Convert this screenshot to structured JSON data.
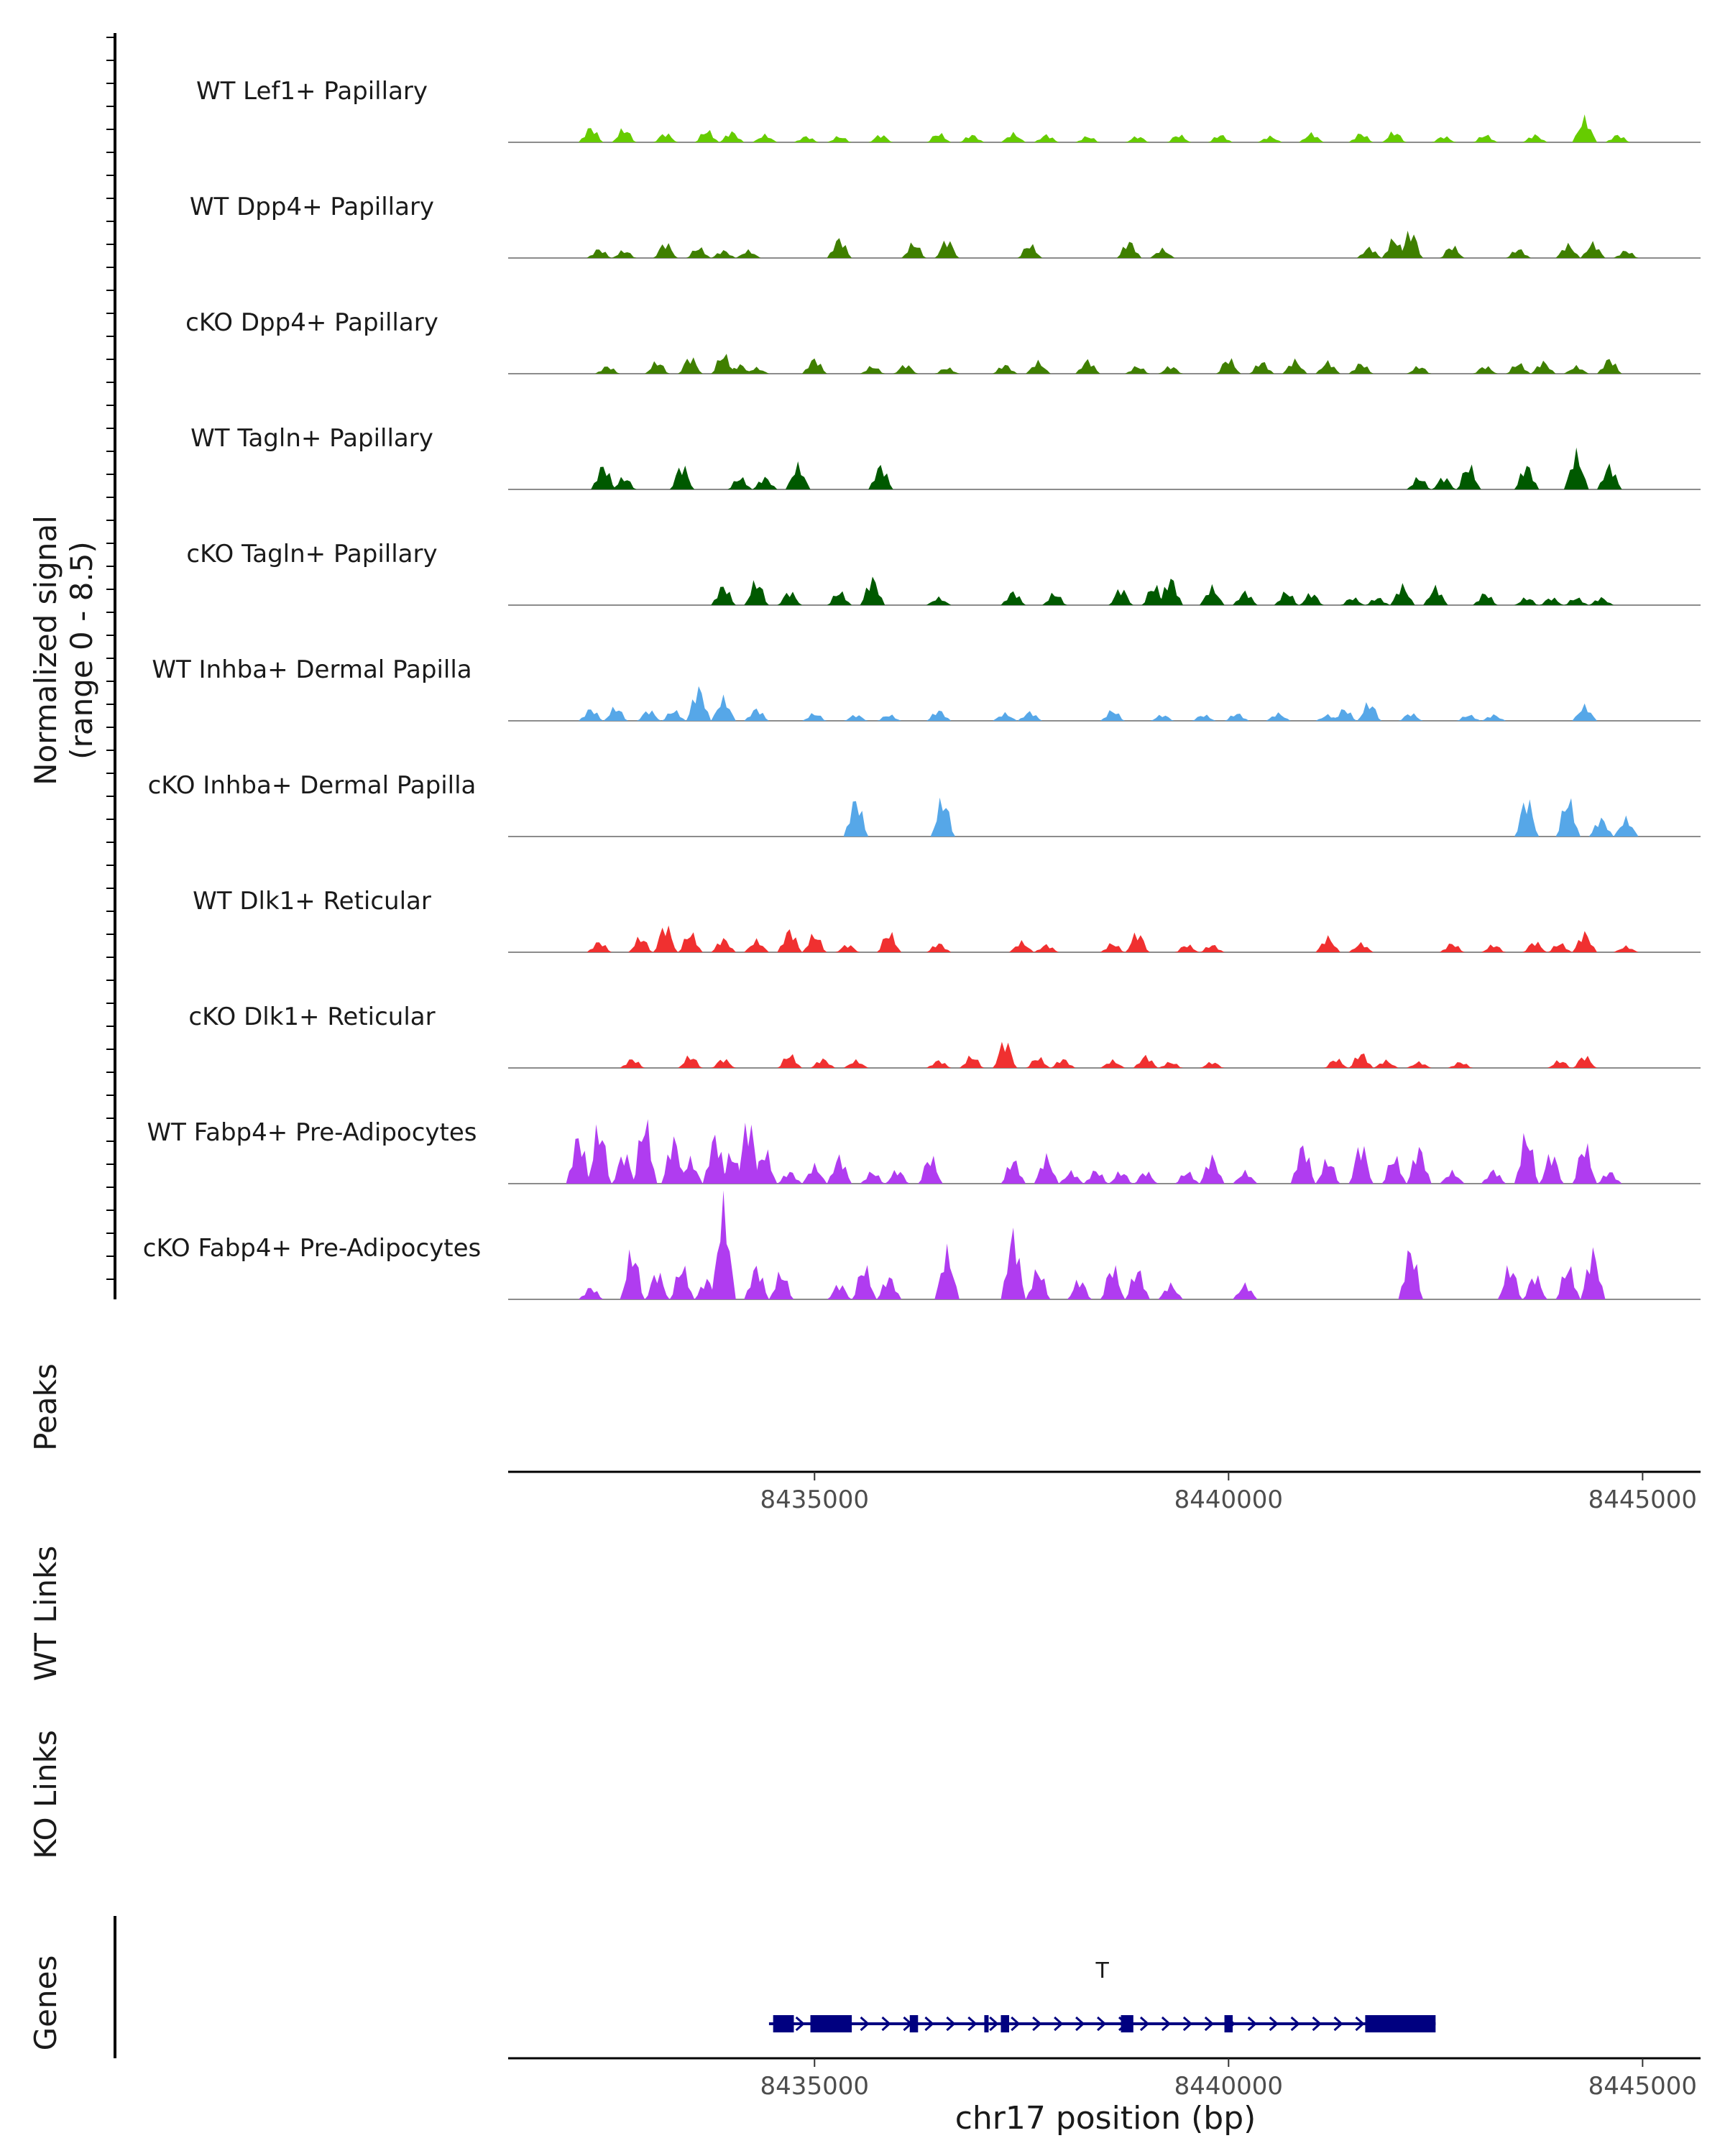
{
  "chart_data": {
    "type": "area",
    "title": "",
    "xlabel": "chr17 position (bp)",
    "ylabel": "Normalized signal",
    "ylabel_range": "(range 0 - 8.5)",
    "ylim": [
      0,
      8.5
    ],
    "xlim": [
      8431300,
      8445700
    ],
    "x_ticks": [
      8435000,
      8440000,
      8445000
    ],
    "x_tick_labels": [
      "8435000",
      "8440000",
      "8445000"
    ],
    "colors": {
      "lime": "#66cc00",
      "olive": "#3f7f00",
      "darkgreen": "#005900",
      "blue": "#56a7e8",
      "red": "#f03030",
      "purple": "#b03cf0",
      "gene": "#000080",
      "baseline": "#8c8c8c"
    },
    "tracks": [
      {
        "name": "WT Lef1+ Papillary",
        "color": "lime",
        "peaks": [
          [
            8432300,
            1.0
          ],
          [
            8432700,
            0.9
          ],
          [
            8433200,
            0.6
          ],
          [
            8433700,
            0.8
          ],
          [
            8434000,
            0.7
          ],
          [
            8434400,
            0.5
          ],
          [
            8434900,
            0.4
          ],
          [
            8435300,
            0.4
          ],
          [
            8435800,
            0.5
          ],
          [
            8436500,
            0.6
          ],
          [
            8436900,
            0.5
          ],
          [
            8437400,
            0.6
          ],
          [
            8437800,
            0.5
          ],
          [
            8438300,
            0.4
          ],
          [
            8438900,
            0.4
          ],
          [
            8439400,
            0.5
          ],
          [
            8439900,
            0.5
          ],
          [
            8440500,
            0.4
          ],
          [
            8441000,
            0.6
          ],
          [
            8441600,
            0.6
          ],
          [
            8442000,
            0.7
          ],
          [
            8442600,
            0.4
          ],
          [
            8443100,
            0.5
          ],
          [
            8443700,
            0.5
          ],
          [
            8444300,
            1.6
          ],
          [
            8444700,
            0.5
          ]
        ]
      },
      {
        "name": "WT Dpp4+ Papillary",
        "color": "olive",
        "peaks": [
          [
            8432400,
            0.6
          ],
          [
            8432700,
            0.5
          ],
          [
            8433200,
            1.0
          ],
          [
            8433600,
            0.7
          ],
          [
            8433900,
            0.5
          ],
          [
            8434200,
            0.5
          ],
          [
            8435300,
            1.3
          ],
          [
            8436200,
            1.0
          ],
          [
            8436600,
            1.2
          ],
          [
            8437600,
            0.9
          ],
          [
            8438800,
            1.1
          ],
          [
            8439200,
            0.6
          ],
          [
            8441700,
            0.7
          ],
          [
            8442000,
            1.3
          ],
          [
            8442200,
            1.8
          ],
          [
            8442700,
            0.8
          ],
          [
            8443500,
            0.6
          ],
          [
            8444100,
            0.9
          ],
          [
            8444400,
            1.0
          ],
          [
            8444800,
            0.5
          ]
        ]
      },
      {
        "name": "cKO Dpp4+ Papillary",
        "color": "olive",
        "peaks": [
          [
            8432500,
            0.5
          ],
          [
            8433100,
            0.8
          ],
          [
            8433500,
            1.1
          ],
          [
            8433900,
            1.3
          ],
          [
            8434100,
            0.6
          ],
          [
            8434300,
            0.4
          ],
          [
            8435000,
            1.0
          ],
          [
            8435700,
            0.5
          ],
          [
            8436100,
            0.6
          ],
          [
            8436600,
            0.4
          ],
          [
            8437300,
            0.6
          ],
          [
            8437700,
            0.8
          ],
          [
            8438300,
            0.9
          ],
          [
            8438900,
            0.5
          ],
          [
            8439300,
            0.5
          ],
          [
            8440000,
            1.0
          ],
          [
            8440400,
            0.8
          ],
          [
            8440800,
            0.9
          ],
          [
            8441200,
            0.8
          ],
          [
            8441600,
            0.7
          ],
          [
            8442300,
            0.5
          ],
          [
            8443100,
            0.5
          ],
          [
            8443500,
            0.7
          ],
          [
            8443800,
            0.8
          ],
          [
            8444200,
            0.5
          ],
          [
            8444600,
            1.0
          ]
        ]
      },
      {
        "name": "WT Tagln+ Papillary",
        "color": "darkgreen",
        "peaks": [
          [
            8432450,
            1.6
          ],
          [
            8432700,
            0.8
          ],
          [
            8433400,
            1.6
          ],
          [
            8434100,
            0.8
          ],
          [
            8434400,
            0.8
          ],
          [
            8434800,
            1.6
          ],
          [
            8435800,
            1.6
          ],
          [
            8442300,
            0.8
          ],
          [
            8442600,
            0.8
          ],
          [
            8442900,
            1.6
          ],
          [
            8443600,
            1.6
          ],
          [
            8444200,
            2.4
          ],
          [
            8444600,
            1.6
          ]
        ]
      },
      {
        "name": "cKO Tagln+ Papillary",
        "color": "darkgreen",
        "peaks": [
          [
            8433900,
            1.3
          ],
          [
            8434300,
            1.6
          ],
          [
            8434700,
            0.9
          ],
          [
            8435300,
            0.9
          ],
          [
            8435700,
            1.8
          ],
          [
            8436500,
            0.5
          ],
          [
            8437400,
            0.9
          ],
          [
            8437900,
            0.8
          ],
          [
            8438700,
            1.1
          ],
          [
            8439100,
            1.3
          ],
          [
            8439300,
            1.8
          ],
          [
            8439800,
            1.2
          ],
          [
            8440200,
            0.9
          ],
          [
            8440700,
            0.9
          ],
          [
            8441000,
            0.8
          ],
          [
            8441500,
            0.5
          ],
          [
            8441800,
            0.5
          ],
          [
            8442100,
            1.3
          ],
          [
            8442500,
            1.2
          ],
          [
            8443100,
            0.8
          ],
          [
            8443600,
            0.5
          ],
          [
            8443900,
            0.5
          ],
          [
            8444200,
            0.5
          ],
          [
            8444500,
            0.5
          ]
        ]
      },
      {
        "name": "WT Inhba+ Dermal Papilla",
        "color": "blue",
        "peaks": [
          [
            8432300,
            0.8
          ],
          [
            8432600,
            0.9
          ],
          [
            8433000,
            0.7
          ],
          [
            8433300,
            0.7
          ],
          [
            8433600,
            2.2
          ],
          [
            8433900,
            1.5
          ],
          [
            8434300,
            0.8
          ],
          [
            8435000,
            0.5
          ],
          [
            8435500,
            0.4
          ],
          [
            8435900,
            0.4
          ],
          [
            8436500,
            0.7
          ],
          [
            8437300,
            0.5
          ],
          [
            8437600,
            0.6
          ],
          [
            8438600,
            0.7
          ],
          [
            8439200,
            0.4
          ],
          [
            8439700,
            0.4
          ],
          [
            8440100,
            0.5
          ],
          [
            8440600,
            0.5
          ],
          [
            8441200,
            0.4
          ],
          [
            8441400,
            0.8
          ],
          [
            8441700,
            1.2
          ],
          [
            8442200,
            0.5
          ],
          [
            8442900,
            0.4
          ],
          [
            8443200,
            0.4
          ],
          [
            8444300,
            1.0
          ]
        ]
      },
      {
        "name": "cKO Inhba+ Dermal Papilla",
        "color": "blue",
        "peaks": [
          [
            8435500,
            2.5
          ],
          [
            8436550,
            2.5
          ],
          [
            8443600,
            2.5
          ],
          [
            8444100,
            2.5
          ],
          [
            8444500,
            1.2
          ],
          [
            8444800,
            1.2
          ]
        ]
      },
      {
        "name": "WT Dlk1+ Reticular",
        "color": "red",
        "peaks": [
          [
            8432400,
            0.7
          ],
          [
            8432900,
            1.0
          ],
          [
            8433200,
            1.8
          ],
          [
            8433500,
            1.3
          ],
          [
            8433900,
            0.9
          ],
          [
            8434300,
            0.8
          ],
          [
            8434700,
            1.5
          ],
          [
            8435000,
            1.2
          ],
          [
            8435400,
            0.5
          ],
          [
            8435900,
            1.3
          ],
          [
            8436500,
            0.6
          ],
          [
            8437500,
            0.7
          ],
          [
            8437800,
            0.5
          ],
          [
            8438600,
            0.6
          ],
          [
            8438900,
            1.3
          ],
          [
            8439500,
            0.5
          ],
          [
            8439800,
            0.5
          ],
          [
            8441200,
            1.0
          ],
          [
            8441600,
            0.6
          ],
          [
            8442700,
            0.6
          ],
          [
            8443200,
            0.5
          ],
          [
            8443700,
            0.7
          ],
          [
            8444000,
            0.6
          ],
          [
            8444300,
            1.3
          ],
          [
            8444800,
            0.4
          ]
        ]
      },
      {
        "name": "cKO Dlk1+ Reticular",
        "color": "red",
        "peaks": [
          [
            8432800,
            0.6
          ],
          [
            8433500,
            0.8
          ],
          [
            8433900,
            0.6
          ],
          [
            8434700,
            0.9
          ],
          [
            8435100,
            0.6
          ],
          [
            8435500,
            0.5
          ],
          [
            8436500,
            0.5
          ],
          [
            8436900,
            0.8
          ],
          [
            8437300,
            1.8
          ],
          [
            8437700,
            0.7
          ],
          [
            8438000,
            0.6
          ],
          [
            8438600,
            0.5
          ],
          [
            8439000,
            0.8
          ],
          [
            8439300,
            0.4
          ],
          [
            8439800,
            0.4
          ],
          [
            8441300,
            0.6
          ],
          [
            8441600,
            1.0
          ],
          [
            8441900,
            0.5
          ],
          [
            8442300,
            0.4
          ],
          [
            8442800,
            0.4
          ],
          [
            8444000,
            0.5
          ],
          [
            8444300,
            0.8
          ]
        ]
      },
      {
        "name": "WT Fabp4+ Pre-Adipocytes",
        "color": "purple",
        "peaks": [
          [
            8432150,
            3.2
          ],
          [
            8432400,
            3.8
          ],
          [
            8432700,
            2.0
          ],
          [
            8432950,
            4.2
          ],
          [
            8433300,
            3.0
          ],
          [
            8433500,
            1.6
          ],
          [
            8433800,
            3.2
          ],
          [
            8434000,
            2.0
          ],
          [
            8434200,
            4.2
          ],
          [
            8434400,
            2.2
          ],
          [
            8434700,
            0.8
          ],
          [
            8435000,
            1.2
          ],
          [
            8435300,
            1.8
          ],
          [
            8435700,
            0.8
          ],
          [
            8436000,
            0.9
          ],
          [
            8436400,
            1.8
          ],
          [
            8437400,
            1.6
          ],
          [
            8437800,
            1.8
          ],
          [
            8438100,
            0.8
          ],
          [
            8438400,
            0.9
          ],
          [
            8438700,
            0.8
          ],
          [
            8439000,
            0.8
          ],
          [
            8439500,
            0.8
          ],
          [
            8439800,
            1.8
          ],
          [
            8440200,
            0.8
          ],
          [
            8440900,
            2.6
          ],
          [
            8441200,
            1.6
          ],
          [
            8441600,
            2.6
          ],
          [
            8442000,
            1.8
          ],
          [
            8442300,
            2.4
          ],
          [
            8442700,
            0.8
          ],
          [
            8443200,
            0.9
          ],
          [
            8443600,
            3.3
          ],
          [
            8443900,
            2.0
          ],
          [
            8444300,
            2.6
          ],
          [
            8444600,
            0.8
          ]
        ]
      },
      {
        "name": "cKO Fabp4+ Pre-Adipocytes",
        "color": "purple",
        "peaks": [
          [
            8432300,
            0.8
          ],
          [
            8432800,
            3.2
          ],
          [
            8433100,
            1.8
          ],
          [
            8433400,
            2.2
          ],
          [
            8433700,
            1.3
          ],
          [
            8433900,
            6.2
          ],
          [
            8434300,
            2.2
          ],
          [
            8434600,
            1.8
          ],
          [
            8435300,
            1.0
          ],
          [
            8435600,
            2.2
          ],
          [
            8435900,
            1.5
          ],
          [
            8436600,
            3.2
          ],
          [
            8437400,
            4.4
          ],
          [
            8437700,
            2.0
          ],
          [
            8438200,
            1.3
          ],
          [
            8438600,
            2.2
          ],
          [
            8438900,
            2.0
          ],
          [
            8439300,
            1.0
          ],
          [
            8440200,
            1.0
          ],
          [
            8442200,
            3.4
          ],
          [
            8443400,
            2.2
          ],
          [
            8443700,
            1.6
          ],
          [
            8444100,
            2.2
          ],
          [
            8444400,
            3.2
          ]
        ]
      }
    ],
    "side_tracks": {
      "peaks": "Peaks",
      "wt_links": "WT Links",
      "ko_links": "KO Links",
      "genes": "Genes"
    },
    "gene": {
      "name": "T",
      "start": 8434450,
      "end": 8442500,
      "strand": "+",
      "exons": [
        [
          8434500,
          8434750
        ],
        [
          8434950,
          8435450
        ],
        [
          8436150,
          8436250
        ],
        [
          8437050,
          8437100
        ],
        [
          8437250,
          8437350
        ],
        [
          8438700,
          8438850
        ],
        [
          8439950,
          8440050
        ],
        [
          8441650,
          8442500
        ]
      ]
    }
  }
}
